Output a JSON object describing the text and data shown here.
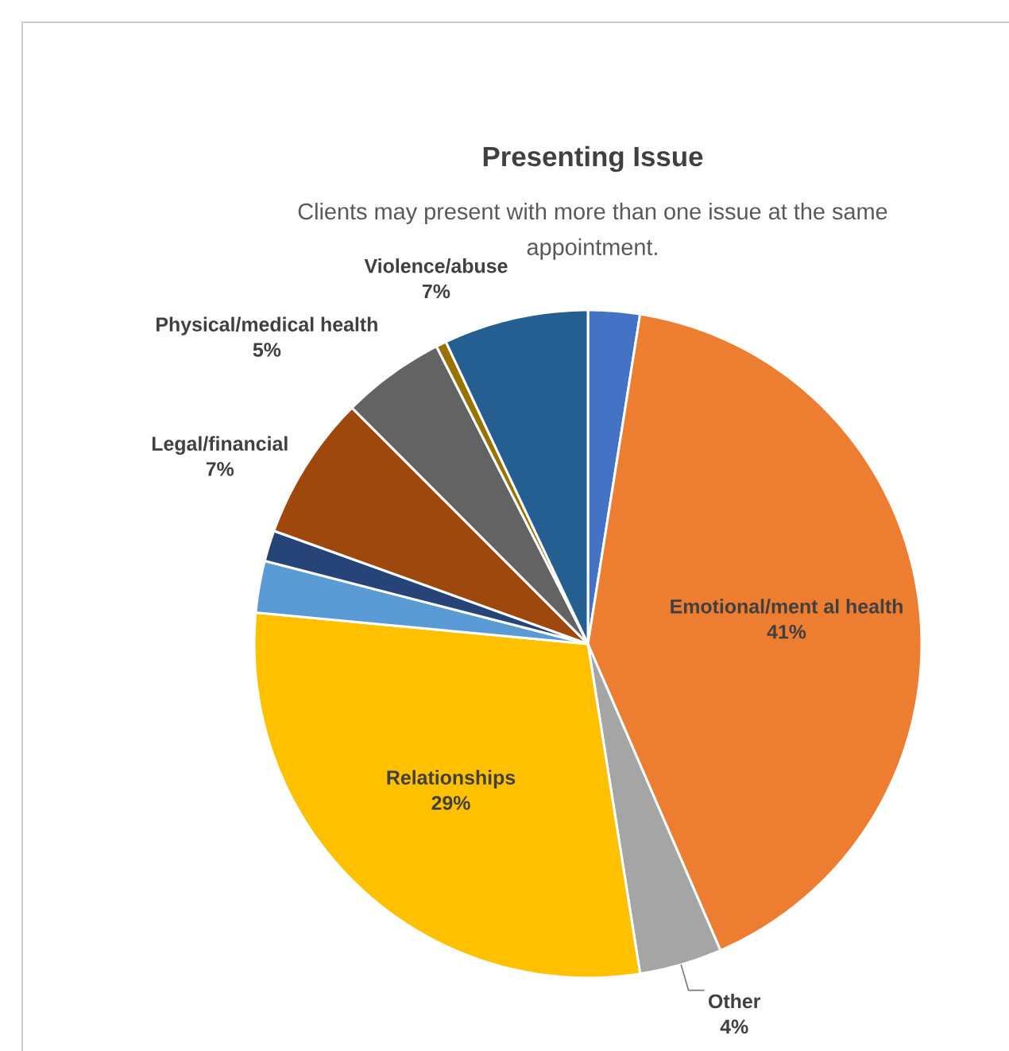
{
  "chart_data": {
    "type": "pie",
    "title": "Presenting Issue",
    "subtitle": "Clients  may present with more than one issue at the same appointment.",
    "categories": [
      null,
      "Emotional/ment al health",
      "Other",
      "Relationships",
      null,
      null,
      "Legal/financial",
      "Physical/medical health",
      null,
      "Violence/abuse"
    ],
    "values": [
      2.5,
      41,
      4,
      29,
      2.5,
      1.5,
      7,
      5,
      0.5,
      7
    ],
    "colors": [
      "#4472c4",
      "#ed7d31",
      "#a5a5a5",
      "#ffc000",
      "#5b9bd5",
      "#264478",
      "#9e480e",
      "#636363",
      "#997300",
      "#255e91"
    ],
    "value_labels": [
      null,
      "41%",
      "4%",
      "29%",
      null,
      null,
      "7%",
      "5%",
      null,
      "7%"
    ]
  }
}
